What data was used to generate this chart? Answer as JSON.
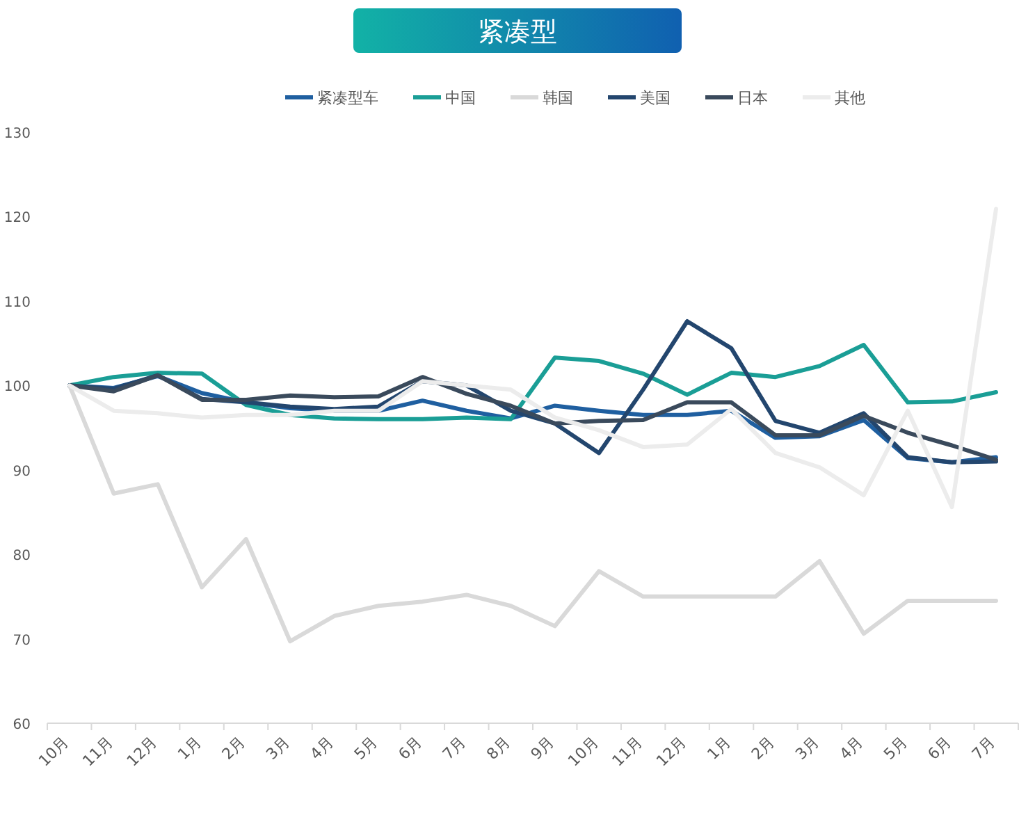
{
  "chart_data": {
    "type": "line",
    "title": "紧凑型",
    "legend": "top",
    "grid": false,
    "marker": "none",
    "line_style": "solid",
    "categories": [
      "10月",
      "11月",
      "12月",
      "1月",
      "2月",
      "3月",
      "4月",
      "5月",
      "6月",
      "7月",
      "8月",
      "9月",
      "10月",
      "11月",
      "12月",
      "1月",
      "2月",
      "3月",
      "4月",
      "5月",
      "6月",
      "7月"
    ],
    "ylim": [
      60,
      130
    ],
    "yticks": [
      60,
      70,
      80,
      90,
      100,
      110,
      120,
      130
    ],
    "series": [
      {
        "name": "紧凑型车",
        "color": "#1f5fa0",
        "values": [
          100,
          99.7,
          101.1,
          99.1,
          98,
          97.3,
          97,
          97,
          98.2,
          97,
          96.1,
          97.6,
          97,
          96.5,
          96.5,
          97,
          93.8,
          94,
          95.9,
          91.4,
          90.9,
          91.5
        ]
      },
      {
        "name": "中国",
        "color": "#1a9e96",
        "values": [
          100,
          101,
          101.5,
          101.4,
          97.7,
          96.5,
          96.1,
          96,
          96,
          96.2,
          96,
          103.3,
          102.9,
          101.4,
          98.9,
          101.5,
          101,
          102.3,
          104.8,
          98,
          98.1,
          99.2
        ]
      },
      {
        "name": "韩国",
        "color": "#d9d9d9",
        "values": [
          100,
          87.2,
          88.3,
          76.1,
          81.8,
          69.7,
          72.7,
          73.9,
          74.4,
          75.2,
          73.9,
          71.5,
          78,
          75,
          75,
          75,
          75,
          79.2,
          70.6,
          74.5,
          74.5,
          74.5
        ]
      },
      {
        "name": "美国",
        "color": "#23466e",
        "values": [
          100,
          99.6,
          101.2,
          98.4,
          98,
          97.5,
          97.2,
          97.5,
          100.5,
          100,
          97,
          95.5,
          92,
          99.5,
          107.6,
          104.4,
          95.8,
          94.4,
          96.7,
          91.5,
          90.9,
          91
        ]
      },
      {
        "name": "日本",
        "color": "#3a4a5c",
        "values": [
          100,
          99.3,
          101.2,
          98.3,
          98.3,
          98.8,
          98.6,
          98.7,
          101,
          99,
          97.6,
          95.5,
          95.8,
          95.9,
          98,
          98,
          94.1,
          94.1,
          96.4,
          94.4,
          92.9,
          91.2
        ]
      },
      {
        "name": "其他",
        "color": "#ececec",
        "values": [
          100,
          97,
          96.7,
          96.2,
          96.5,
          96.5,
          97,
          97,
          100.5,
          100,
          99.5,
          96.2,
          94.7,
          92.7,
          93,
          97.2,
          92,
          90.3,
          87,
          97,
          85.6,
          120.9
        ]
      }
    ]
  }
}
